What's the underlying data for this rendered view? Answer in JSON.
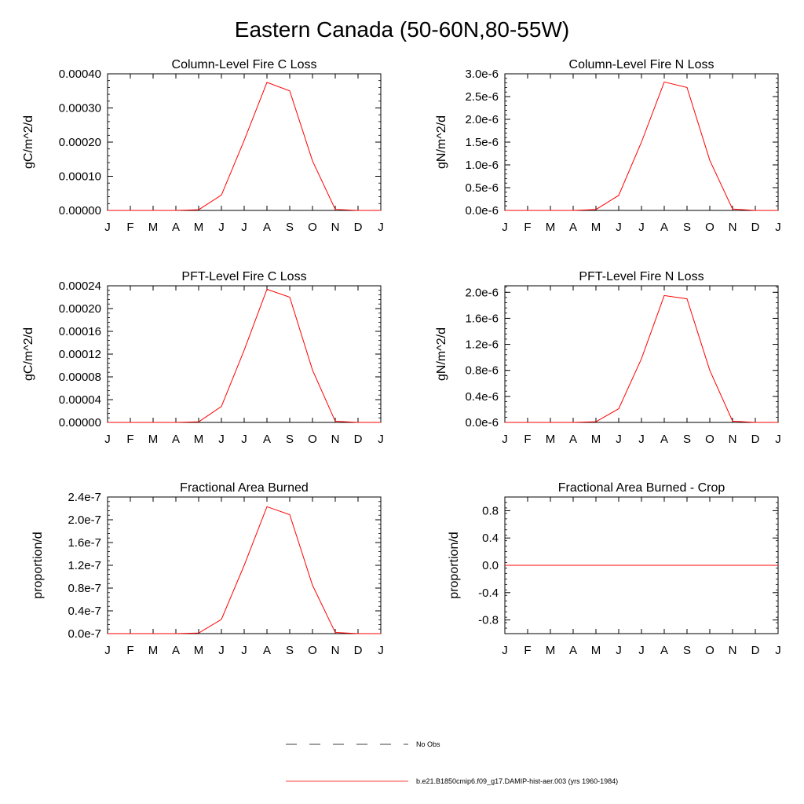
{
  "title": "Eastern Canada (50-60N,80-55W)",
  "legend": {
    "entries": [
      {
        "label": "No Obs",
        "style": "dashed",
        "color": "#000000"
      },
      {
        "label": "b.e21.B1850cmip6.f09_g17.DAMIP-hist-aer.003 (yrs 1960-1984)",
        "style": "solid",
        "color": "#ff0000"
      }
    ]
  },
  "chart_data": [
    {
      "type": "line",
      "title": "Column-Level Fire C Loss",
      "ylabel": "gC/m^2/d",
      "categories": [
        "J",
        "F",
        "M",
        "A",
        "M",
        "J",
        "J",
        "A",
        "S",
        "O",
        "N",
        "D",
        "J"
      ],
      "ylim": [
        0,
        0.0004
      ],
      "yticks": [
        "0.00000",
        "0.00010",
        "0.00020",
        "0.00030",
        "0.00040"
      ],
      "ytick_values": [
        0,
        0.0001,
        0.0002,
        0.0003,
        0.0004
      ],
      "series": [
        {
          "color": "#ff0000",
          "values": [
            0,
            0,
            0,
            0,
            2e-06,
            4.5e-05,
            0.000205,
            0.000375,
            0.00035,
            0.000145,
            3e-06,
            0,
            0
          ]
        }
      ]
    },
    {
      "type": "line",
      "title": "Column-Level Fire N Loss",
      "ylabel": "gN/m^2/d",
      "categories": [
        "J",
        "F",
        "M",
        "A",
        "M",
        "J",
        "J",
        "A",
        "S",
        "O",
        "N",
        "D",
        "J"
      ],
      "ylim": [
        0,
        3e-06
      ],
      "yticks": [
        "0.0e-6",
        "0.5e-6",
        "1.0e-6",
        "1.5e-6",
        "2.0e-6",
        "2.5e-6",
        "3.0e-6"
      ],
      "ytick_values": [
        0,
        5e-07,
        1e-06,
        1.5e-06,
        2e-06,
        2.5e-06,
        3e-06
      ],
      "series": [
        {
          "color": "#ff0000",
          "values": [
            0,
            0,
            0,
            0,
            2e-08,
            3.3e-07,
            1.5e-06,
            2.82e-06,
            2.7e-06,
            1.1e-06,
            3e-08,
            0,
            0
          ]
        }
      ]
    },
    {
      "type": "line",
      "title": "PFT-Level Fire C Loss",
      "ylabel": "gC/m^2/d",
      "categories": [
        "J",
        "F",
        "M",
        "A",
        "M",
        "J",
        "J",
        "A",
        "S",
        "O",
        "N",
        "D",
        "J"
      ],
      "ylim": [
        0,
        0.00024
      ],
      "yticks": [
        "0.00000",
        "0.00004",
        "0.00008",
        "0.00012",
        "0.00016",
        "0.00020",
        "0.00024"
      ],
      "ytick_values": [
        0,
        4e-05,
        8e-05,
        0.00012,
        0.00016,
        0.0002,
        0.00024
      ],
      "series": [
        {
          "color": "#ff0000",
          "values": [
            0,
            0,
            0,
            0,
            1e-06,
            2.8e-05,
            0.000127,
            0.000234,
            0.00022,
            9.2e-05,
            2e-06,
            0,
            0
          ]
        }
      ]
    },
    {
      "type": "line",
      "title": "PFT-Level Fire N Loss",
      "ylabel": "gN/m^2/d",
      "categories": [
        "J",
        "F",
        "M",
        "A",
        "M",
        "J",
        "J",
        "A",
        "S",
        "O",
        "N",
        "D",
        "J"
      ],
      "ylim": [
        0,
        2.1e-06
      ],
      "yticks": [
        "0.0e-6",
        "0.4e-6",
        "0.8e-6",
        "1.2e-6",
        "1.6e-6",
        "2.0e-6"
      ],
      "ytick_values": [
        0,
        4e-07,
        8e-07,
        1.2e-06,
        1.6e-06,
        2e-06
      ],
      "series": [
        {
          "color": "#ff0000",
          "values": [
            0,
            0,
            0,
            0,
            1e-08,
            2.1e-07,
            9.8e-07,
            1.95e-06,
            1.9e-06,
            8e-07,
            2e-08,
            0,
            0
          ]
        }
      ]
    },
    {
      "type": "line",
      "title": "Fractional Area Burned",
      "ylabel": "proportion/d",
      "categories": [
        "J",
        "F",
        "M",
        "A",
        "M",
        "J",
        "J",
        "A",
        "S",
        "O",
        "N",
        "D",
        "J"
      ],
      "ylim": [
        0,
        2.4e-07
      ],
      "yticks": [
        "0.0e-7",
        "0.4e-7",
        "0.8e-7",
        "1.2e-7",
        "1.6e-7",
        "2.0e-7",
        "2.4e-7"
      ],
      "ytick_values": [
        0,
        4e-08,
        8e-08,
        1.2e-07,
        1.6e-07,
        2e-07,
        2.4e-07
      ],
      "series": [
        {
          "color": "#ff0000",
          "values": [
            0,
            0,
            0,
            0,
            1e-09,
            2.5e-08,
            1.2e-07,
            2.23e-07,
            2.09e-07,
            8.5e-08,
            2e-09,
            0,
            0
          ]
        }
      ]
    },
    {
      "type": "line",
      "title": "Fractional Area Burned - Crop",
      "ylabel": "proportion/d",
      "categories": [
        "J",
        "F",
        "M",
        "A",
        "M",
        "J",
        "J",
        "A",
        "S",
        "O",
        "N",
        "D",
        "J"
      ],
      "ylim": [
        -1,
        1
      ],
      "yticks": [
        "-0.8",
        "-0.4",
        "0.0",
        "0.4",
        "0.8"
      ],
      "ytick_values": [
        -0.8,
        -0.4,
        0,
        0.4,
        0.8
      ],
      "series": [
        {
          "color": "#ff0000",
          "values": [
            0,
            0,
            0,
            0,
            0,
            0,
            0,
            0,
            0,
            0,
            0,
            0,
            0
          ]
        }
      ]
    }
  ]
}
